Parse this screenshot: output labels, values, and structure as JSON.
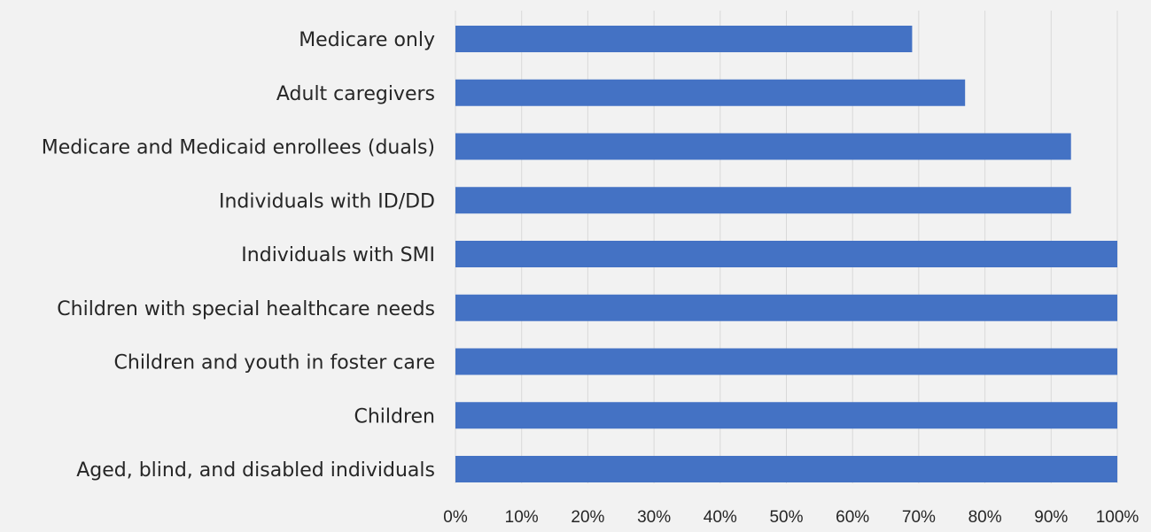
{
  "chart_data": {
    "type": "bar",
    "orientation": "horizontal",
    "title": "",
    "xlabel": "",
    "ylabel": "",
    "categories": [
      "Medicare only",
      "Adult caregivers",
      "Medicare and Medicaid enrollees (duals)",
      "Individuals with ID/DD",
      "Individuals with SMI",
      "Children with special healthcare needs",
      "Children and youth in foster care",
      "Children",
      "Aged, blind, and disabled individuals"
    ],
    "values": [
      69,
      77,
      93,
      93,
      100,
      100,
      100,
      100,
      100
    ],
    "xlim": [
      0,
      100
    ],
    "xticks": [
      "0%",
      "10%",
      "20%",
      "30%",
      "40%",
      "50%",
      "60%",
      "70%",
      "80%",
      "90%",
      "100%"
    ],
    "grid": "vertical",
    "legend": "none",
    "bar_color": "#4472c4"
  }
}
